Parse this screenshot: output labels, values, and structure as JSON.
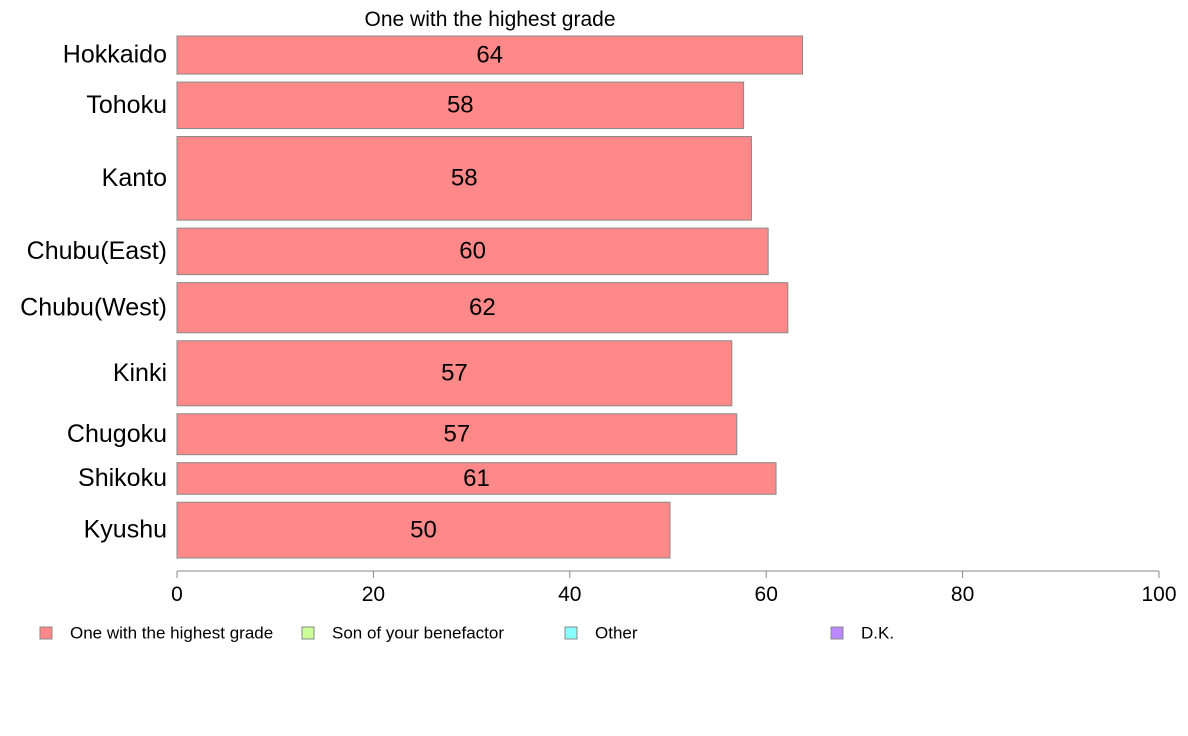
{
  "chart_data": {
    "type": "bar",
    "orientation": "horizontal",
    "title": "One with the highest grade",
    "categories": [
      "Hokkaido",
      "Tohoku",
      "Kanto",
      "Chubu(East)",
      "Chubu(West)",
      "Kinki",
      "Chugoku",
      "Shikoku",
      "Kyushu"
    ],
    "values": [
      64,
      58,
      58,
      60,
      62,
      57,
      57,
      61,
      50
    ],
    "bar_values_precise": [
      63.7,
      57.7,
      58.5,
      60.2,
      62.2,
      56.5,
      57.0,
      61.0,
      50.2
    ],
    "bar_weights": [
      41,
      50,
      90,
      50,
      54,
      70,
      44,
      34,
      60
    ],
    "xlim": [
      0,
      100
    ],
    "xticks": [
      0,
      20,
      40,
      60,
      80,
      100
    ],
    "series_color": "#ff8888",
    "grid": false,
    "legend_position": "bottom",
    "legend": [
      {
        "label": "One with the highest grade",
        "color": "#ff8888"
      },
      {
        "label": "Son of your benefactor",
        "color": "#ccff99"
      },
      {
        "label": "Other",
        "color": "#88ffff"
      },
      {
        "label": "D.K.",
        "color": "#bb88ff"
      }
    ]
  }
}
